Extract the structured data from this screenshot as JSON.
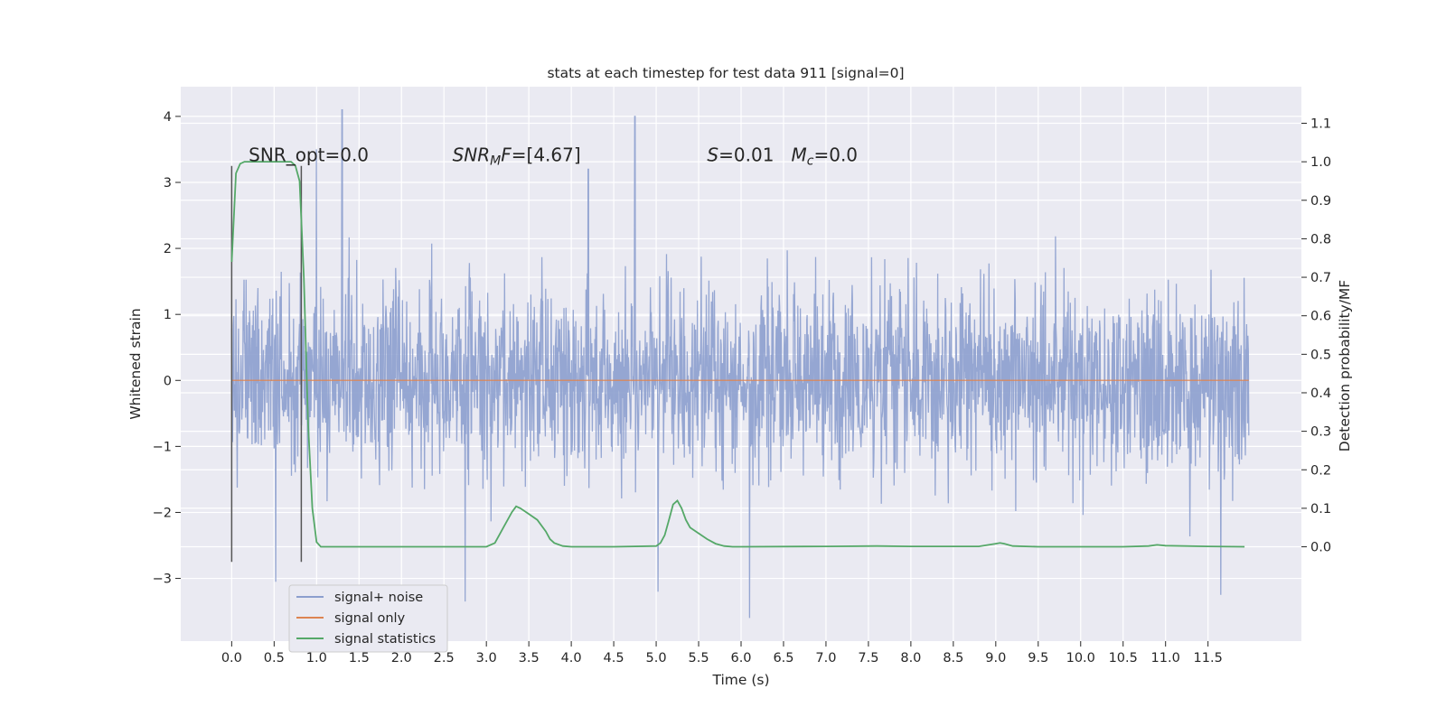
{
  "chart_data": {
    "type": "line",
    "title": "stats at each timestep for test data 911 [signal=0]",
    "xlabel": "Time (s)",
    "ylabel": "Whitened strain",
    "y2label": "Detection probability/MF",
    "xlim": [
      -0.6,
      12.6
    ],
    "ylim": [
      -3.95,
      4.45
    ],
    "y2lim": [
      -0.245,
      1.195
    ],
    "x_ticks": [
      "0.0",
      "0.5",
      "1.0",
      "1.5",
      "2.0",
      "2.5",
      "3.0",
      "3.5",
      "4.0",
      "4.5",
      "5.0",
      "5.5",
      "6.0",
      "6.5",
      "7.0",
      "7.5",
      "8.0",
      "8.5",
      "9.0",
      "9.5",
      "10.0",
      "10.5",
      "11.0",
      "11.5"
    ],
    "y_ticks": [
      "4",
      "3",
      "2",
      "1",
      "0",
      "−1",
      "−2",
      "−3"
    ],
    "y2_ticks": [
      "1.1",
      "1.0",
      "0.9",
      "0.8",
      "0.7",
      "0.6",
      "0.5",
      "0.4",
      "0.3",
      "0.2",
      "0.1",
      "0.0"
    ],
    "grid": true,
    "legend_position": "lower-left",
    "colors": {
      "noise": "#8c9fce",
      "signal": "#dd8452",
      "stats": "#55a868",
      "marker": "#555555",
      "plot_bg": "#eaeaf2",
      "grid": "#ffffff"
    },
    "series": [
      {
        "name": "signal+ noise",
        "color": "#8c9fce",
        "x_range": [
          0.0,
          11.98
        ],
        "typical_envelope": [
          -2.0,
          2.2
        ],
        "peaks": [
          {
            "x": 1.3,
            "y": 4.1
          },
          {
            "x": 4.75,
            "y": 4.0
          },
          {
            "x": 1.0,
            "y": 3.5
          },
          {
            "x": 4.2,
            "y": 3.2
          },
          {
            "x": 6.1,
            "y": -3.6
          },
          {
            "x": 2.75,
            "y": -3.35
          },
          {
            "x": 11.65,
            "y": -3.25
          },
          {
            "x": 5.02,
            "y": -3.2
          },
          {
            "x": 0.52,
            "y": -3.05
          }
        ]
      },
      {
        "name": "signal only",
        "color": "#dd8452",
        "x": [
          0.0,
          11.98
        ],
        "y": [
          0.0,
          0.0
        ]
      },
      {
        "name": "signal statistics",
        "color": "#55a868",
        "axis": "right",
        "x": [
          0.0,
          0.05,
          0.1,
          0.15,
          0.2,
          0.3,
          0.4,
          0.5,
          0.6,
          0.7,
          0.75,
          0.8,
          0.85,
          0.9,
          0.95,
          1.0,
          1.05,
          1.2,
          1.5,
          2.0,
          2.5,
          3.0,
          3.1,
          3.2,
          3.3,
          3.35,
          3.4,
          3.5,
          3.6,
          3.7,
          3.75,
          3.8,
          3.9,
          4.0,
          4.5,
          5.0,
          5.05,
          5.1,
          5.15,
          5.2,
          5.25,
          5.3,
          5.35,
          5.4,
          5.5,
          5.6,
          5.7,
          5.8,
          5.9,
          6.0,
          7.0,
          7.6,
          8.0,
          8.8,
          9.0,
          9.05,
          9.1,
          9.2,
          9.5,
          10.0,
          10.5,
          10.8,
          10.9,
          11.0,
          11.5,
          11.93
        ],
        "y": [
          0.74,
          0.97,
          0.995,
          1.0,
          1.0,
          1.0,
          1.0,
          1.0,
          1.0,
          1.0,
          0.99,
          0.95,
          0.7,
          0.32,
          0.1,
          0.012,
          0.0,
          0.0,
          0.0,
          0.0,
          0.0,
          0.0,
          0.01,
          0.05,
          0.09,
          0.105,
          0.1,
          0.085,
          0.07,
          0.04,
          0.02,
          0.01,
          0.002,
          0.0,
          0.0,
          0.002,
          0.01,
          0.03,
          0.07,
          0.11,
          0.12,
          0.1,
          0.07,
          0.05,
          0.035,
          0.02,
          0.008,
          0.002,
          0.0,
          0.0,
          0.001,
          0.002,
          0.001,
          0.001,
          0.008,
          0.01,
          0.008,
          0.002,
          0.0,
          0.0,
          0.0,
          0.002,
          0.005,
          0.003,
          0.001,
          0.0
        ]
      }
    ],
    "markers": [
      {
        "x": 0.0,
        "y_range": [
          -2.75,
          3.25
        ]
      },
      {
        "x": 0.82,
        "y_range": [
          -2.75,
          3.25
        ]
      }
    ],
    "annotations": [
      {
        "id": "snr_opt",
        "label": "SNR_opt=0.0",
        "x": 0.2,
        "y": 3.32
      },
      {
        "id": "snr_mf",
        "label": "SNR_MF=[4.67]",
        "x": 2.6,
        "y": 3.32
      },
      {
        "id": "s_mc",
        "label": "S=0.01   M_c=0.0",
        "x": 5.6,
        "y": 3.32
      }
    ]
  }
}
